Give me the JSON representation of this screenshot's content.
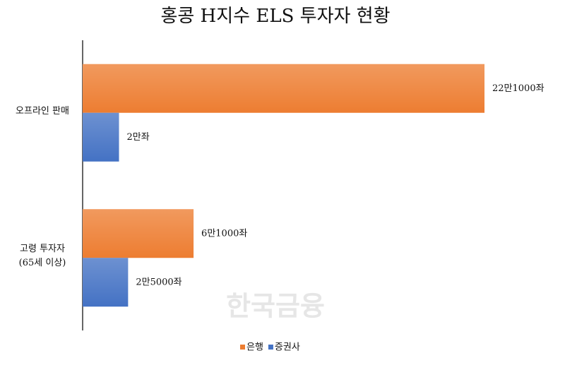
{
  "chart_data": {
    "type": "barh",
    "title": "홍콩 H지수 ELS 투자자 현황",
    "categories": [
      "오프라인 판매",
      "고령 투자자\n(65세 이상)"
    ],
    "series": [
      {
        "name": "은행",
        "color": "#ed7d31",
        "values": [
          221000,
          61000
        ],
        "value_labels": [
          "22만1000좌",
          "6만1000좌"
        ]
      },
      {
        "name": "증권사",
        "color": "#4472c4",
        "values": [
          20000,
          25000
        ],
        "value_labels": [
          "2만좌",
          "2만5000좌"
        ]
      }
    ],
    "legend": "bottom",
    "watermark": "한국금융"
  }
}
